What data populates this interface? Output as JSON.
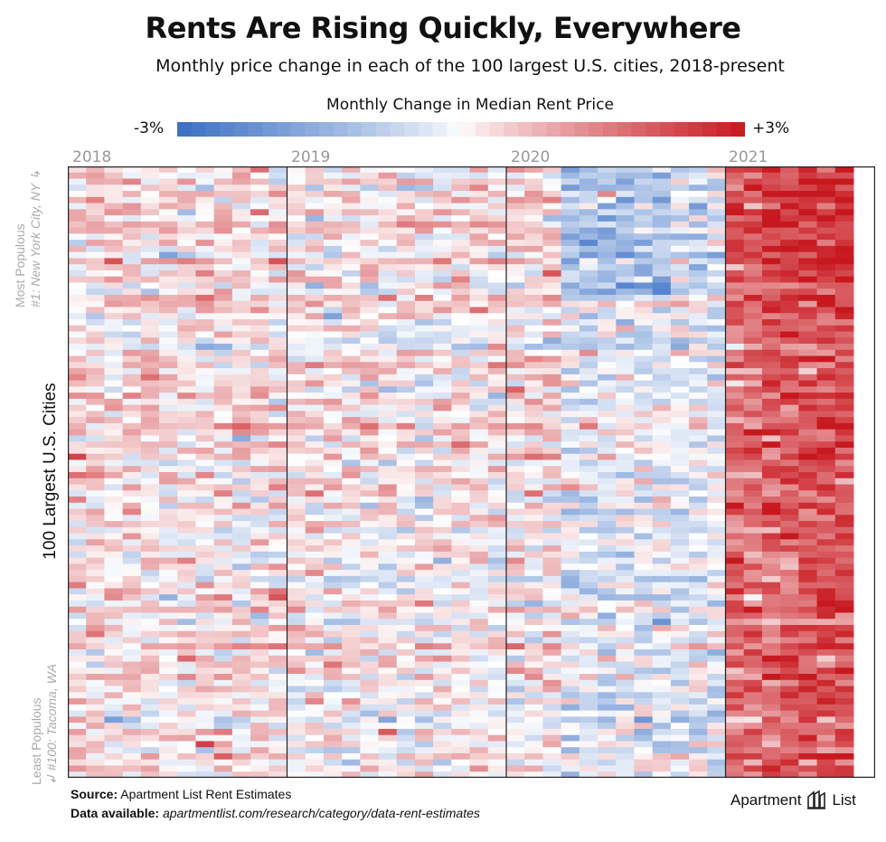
{
  "header": {
    "title": "Rents Are Rising Quickly, Everywhere",
    "subtitle": "Monthly price change in each of the 100 largest U.S. cities, 2018-present"
  },
  "legend": {
    "title": "Monthly Change in Median Rent Price",
    "min_label": "-3%",
    "max_label": "+3%",
    "low_color": "#3a6fc4",
    "mid_color": "#ffffff",
    "high_color": "#c8181f"
  },
  "axis": {
    "y_label": "100 Largest U.S. Cities",
    "top_label_line1": "Most Populous",
    "top_label_line2": "#1: New York City, NY",
    "bottom_label_line1": "Least Populous",
    "bottom_label_line2": "#100: Tacoma, WA",
    "top_arrow": "↳",
    "bottom_arrow": "↲"
  },
  "footer": {
    "source_label": "Source:",
    "source_text": "Apartment List Rent Estimates",
    "data_label": "Data available:",
    "data_text": "apartmentlist.com/research/category/data-rent-estimates"
  },
  "brand": {
    "name_left": "Apartment",
    "name_right": "List"
  },
  "chart_data": {
    "type": "heatmap",
    "title": "Rents Are Rising Quickly, Everywhere",
    "subtitle": "Monthly price change in each of the 100 largest U.S. cities, 2018-present",
    "xlabel": "",
    "ylabel": "100 Largest U.S. Cities",
    "color_scale": {
      "min": -3,
      "max": 3,
      "unit": "%",
      "label": "Monthly Change in Median Rent Price"
    },
    "x_tick_labels": [
      "2018",
      "2019",
      "2020",
      "2021"
    ],
    "rows": 100,
    "months_per_year": 12,
    "months": 43,
    "start": "2018-01",
    "end": "2021-07",
    "row_order": "Most populous (#1: New York City, NY) at top to least populous (#100: Tacoma, WA) at bottom",
    "period_means_pct": {
      "2018": 0.3,
      "2019": 0.15,
      "2020_jan_mar": 0.2,
      "2020_apr_dec": -0.25,
      "2021": 1.6
    }
  }
}
